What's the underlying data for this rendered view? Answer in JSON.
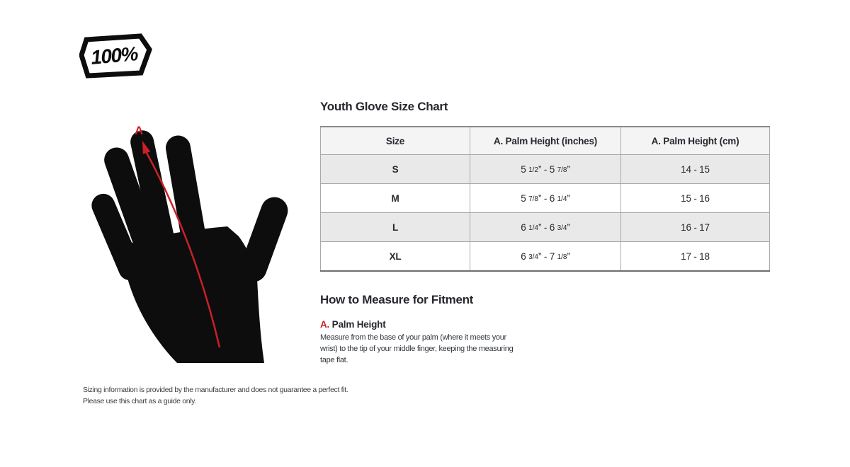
{
  "brand": {
    "logo_text": "100%"
  },
  "colors": {
    "accent_red": "#cb2027",
    "ink": "#26282e",
    "glove_black": "#0d0d0d",
    "table_header_bg": "#f4f4f4",
    "table_stripe_bg": "#e9e9e9",
    "table_border": "#a9a9a9"
  },
  "glove_diagram": {
    "measurement_label": "A"
  },
  "size_chart": {
    "title": "Youth Glove Size Chart",
    "columns": [
      "Size",
      "A. Palm Height (inches)",
      "A. Palm Height (cm)"
    ],
    "rows": [
      {
        "size": "S",
        "inches": "5 1/2” - 5 7/8”",
        "cm": "14 - 15"
      },
      {
        "size": "M",
        "inches": "5 7/8” - 6 1/4”",
        "cm": "15 - 16"
      },
      {
        "size": "L",
        "inches": "6 1/4” - 6 3/4”",
        "cm": "16 - 17"
      },
      {
        "size": "XL",
        "inches": "6 3/4” - 7 1/8”",
        "cm": "17 - 18"
      }
    ]
  },
  "how_to_measure": {
    "title": "How to Measure for Fitment",
    "items": [
      {
        "letter": "A.",
        "name": "Palm Height",
        "description_lines": [
          "Measure from the base of your palm (where it meets your",
          "wrist) to the tip of your middle finger, keeping the measuring",
          "tape flat."
        ]
      }
    ]
  },
  "disclaimer": {
    "lines": [
      "Sizing information is provided by the manufacturer and does not guarantee a perfect fit.",
      "Please use this chart as a guide only."
    ]
  }
}
